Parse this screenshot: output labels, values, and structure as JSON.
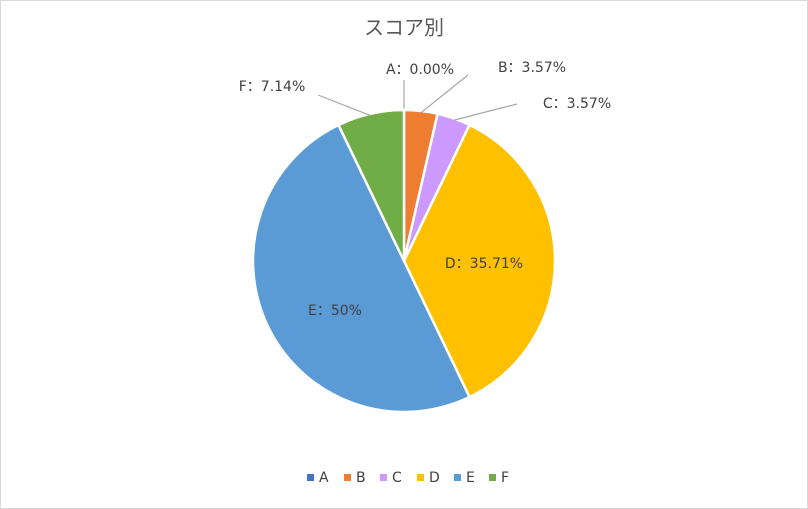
{
  "chart_data": {
    "type": "pie",
    "title": "スコア別",
    "categories": [
      "A",
      "B",
      "C",
      "D",
      "E",
      "F"
    ],
    "values": [
      0,
      3.57,
      3.57,
      35.71,
      50,
      7.14
    ],
    "value_labels": [
      "A：0.00%",
      "B：3.57%",
      "C：3.57%",
      "D：35.71%",
      "E：50%",
      "F：7.14%"
    ],
    "colors": [
      "#4472c4",
      "#ed7d31",
      "#cc99ff",
      "#ffc000",
      "#5b9bd5",
      "#70ad47"
    ],
    "legend": "bottom"
  }
}
